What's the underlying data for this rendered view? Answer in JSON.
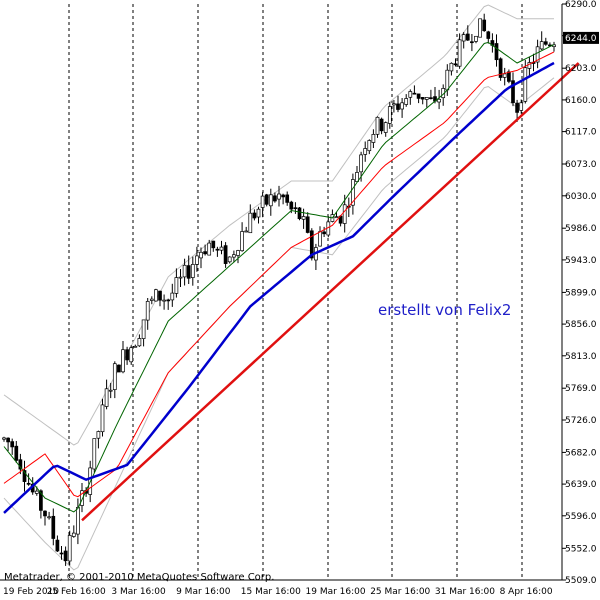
{
  "window": {
    "copyright": "Metatrader, © 2001-2010 MetaQuotes Software Corp.",
    "annotation": "erstellt von Felix2"
  },
  "colors": {
    "background": "#ffffff",
    "axis": "#000000",
    "grid": "#000000",
    "candle_bull": "#ffffff",
    "candle_bear": "#000000",
    "band": "#c0c0c0",
    "ma_fast": "#006400",
    "ma_medium": "#ff0000",
    "ma_slow": "#0000cd",
    "trendline": "#e01010",
    "annotation": "#1f1fc8",
    "price_tag_bg": "#000000",
    "price_tag_text": "#ffffff"
  },
  "chart_data": {
    "type": "candlestick",
    "instrument_timeframe_note": "4-hour candlesticks",
    "y_ticks": [
      "6290.0",
      "6247.0",
      "6203.0",
      "6160.0",
      "6117.0",
      "6073.0",
      "6030.0",
      "5986.0",
      "5943.0",
      "5899.0",
      "5856.0",
      "5813.0",
      "5769.0",
      "5726.0",
      "5682.0",
      "5639.0",
      "5596.0",
      "5552.0",
      "5509.0"
    ],
    "ylim": [
      5509,
      6290
    ],
    "x_ticks": [
      "19 Feb 2010",
      "25 Feb 16:00",
      "3 Mar 16:00",
      "9 Mar 16:00",
      "15 Mar 16:00",
      "19 Mar 16:00",
      "25 Mar 16:00",
      "31 Mar 16:00",
      "8 Apr 16:00"
    ],
    "period_separators": 8,
    "current_price": "6244.0",
    "close_path": [
      [
        0,
        5700
      ],
      [
        5,
        5690
      ],
      [
        10,
        5655
      ],
      [
        15,
        5620
      ],
      [
        20,
        5600
      ],
      [
        25,
        5560
      ],
      [
        30,
        5540
      ],
      [
        35,
        5590
      ],
      [
        40,
        5640
      ],
      [
        45,
        5700
      ],
      [
        50,
        5760
      ],
      [
        55,
        5800
      ],
      [
        60,
        5820
      ],
      [
        65,
        5840
      ],
      [
        70,
        5880
      ],
      [
        75,
        5895
      ],
      [
        80,
        5890
      ],
      [
        85,
        5910
      ],
      [
        90,
        5930
      ],
      [
        95,
        5955
      ],
      [
        100,
        5965
      ],
      [
        105,
        5950
      ],
      [
        110,
        5945
      ],
      [
        115,
        5975
      ],
      [
        120,
        6000
      ],
      [
        125,
        6015
      ],
      [
        130,
        6025
      ],
      [
        135,
        6030
      ],
      [
        140,
        6010
      ],
      [
        145,
        6000
      ],
      [
        150,
        5950
      ],
      [
        155,
        5985
      ],
      [
        160,
        6000
      ],
      [
        165,
        6005
      ],
      [
        170,
        6045
      ],
      [
        175,
        6100
      ],
      [
        180,
        6120
      ],
      [
        185,
        6130
      ],
      [
        190,
        6150
      ],
      [
        195,
        6160
      ],
      [
        200,
        6170
      ],
      [
        205,
        6165
      ],
      [
        210,
        6150
      ],
      [
        215,
        6185
      ],
      [
        220,
        6220
      ],
      [
        225,
        6240
      ],
      [
        230,
        6260
      ],
      [
        235,
        6250
      ],
      [
        240,
        6220
      ],
      [
        245,
        6180
      ],
      [
        250,
        6150
      ],
      [
        255,
        6200
      ],
      [
        260,
        6225
      ],
      [
        265,
        6240
      ],
      [
        268,
        6244
      ]
    ],
    "ma_fast": [
      [
        0,
        5690
      ],
      [
        20,
        5620
      ],
      [
        35,
        5600
      ],
      [
        55,
        5720
      ],
      [
        80,
        5860
      ],
      [
        110,
        5935
      ],
      [
        140,
        6010
      ],
      [
        160,
        6000
      ],
      [
        185,
        6100
      ],
      [
        215,
        6170
      ],
      [
        235,
        6240
      ],
      [
        250,
        6210
      ],
      [
        268,
        6235
      ]
    ],
    "ma_medium": [
      [
        0,
        5640
      ],
      [
        20,
        5680
      ],
      [
        35,
        5620
      ],
      [
        55,
        5660
      ],
      [
        80,
        5790
      ],
      [
        110,
        5880
      ],
      [
        140,
        5960
      ],
      [
        160,
        5990
      ],
      [
        185,
        6070
      ],
      [
        215,
        6130
      ],
      [
        235,
        6190
      ],
      [
        250,
        6200
      ],
      [
        268,
        6225
      ]
    ],
    "ma_slow": [
      [
        0,
        5600
      ],
      [
        25,
        5665
      ],
      [
        40,
        5645
      ],
      [
        60,
        5665
      ],
      [
        90,
        5770
      ],
      [
        120,
        5880
      ],
      [
        150,
        5950
      ],
      [
        170,
        5975
      ],
      [
        190,
        6030
      ],
      [
        220,
        6110
      ],
      [
        245,
        6175
      ],
      [
        268,
        6210
      ]
    ],
    "band_upper": [
      [
        0,
        5760
      ],
      [
        20,
        5720
      ],
      [
        35,
        5690
      ],
      [
        55,
        5790
      ],
      [
        80,
        5920
      ],
      [
        110,
        5990
      ],
      [
        140,
        6050
      ],
      [
        160,
        6050
      ],
      [
        185,
        6150
      ],
      [
        215,
        6220
      ],
      [
        235,
        6290
      ],
      [
        250,
        6270
      ],
      [
        268,
        6270
      ]
    ],
    "band_lower": [
      [
        0,
        5620
      ],
      [
        20,
        5560
      ],
      [
        35,
        5520
      ],
      [
        55,
        5640
      ],
      [
        80,
        5790
      ],
      [
        110,
        5880
      ],
      [
        140,
        5960
      ],
      [
        160,
        5950
      ],
      [
        185,
        6040
      ],
      [
        215,
        6110
      ],
      [
        235,
        6180
      ],
      [
        250,
        6150
      ],
      [
        268,
        6190
      ]
    ],
    "trendline": [
      [
        38,
        5590
      ],
      [
        280,
        6210
      ]
    ]
  }
}
